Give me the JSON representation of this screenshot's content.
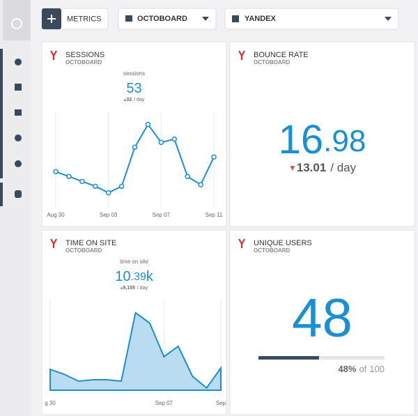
{
  "toolbar": {
    "add_label": "METRICS",
    "dashboard": "OCTOBOARD",
    "source": "YANDEX"
  },
  "widgets": [
    {
      "title": "SESSIONS",
      "subtitle": "OCTOBOARD",
      "metric_label": "sessions",
      "value": 53,
      "delta": 33,
      "delta_unit": "/ day",
      "chart": {
        "type": "line",
        "color": "#1a8fd1",
        "ylim": [
          10,
          70
        ],
        "values": [
          33,
          30,
          27,
          24,
          20,
          24,
          48,
          62,
          51,
          53,
          30,
          25,
          42
        ],
        "x_labels": [
          "Aug 30",
          "Sep 03",
          "Sep 07",
          "Sep 11"
        ],
        "x_label_index": [
          0,
          4,
          8,
          12
        ]
      }
    },
    {
      "title": "BOUNCE RATE",
      "subtitle": "OCTOBOARD",
      "value_whole": "16",
      "value_fraction": ".98",
      "delta": 13.01,
      "delta_unit": "/ day"
    },
    {
      "title": "TIME ON SITE",
      "subtitle": "OCTOBOARD",
      "metric_label": "time on site",
      "value_whole": "10",
      "value_fraction": ".39",
      "value_suffix": "k",
      "delta": "9,155",
      "delta_unit": "/ day",
      "chart": {
        "type": "area",
        "color": "#1a8fd1",
        "fill": "#b9dcf1",
        "ylim": [
          0,
          20
        ],
        "values": [
          4.6,
          3.5,
          2.0,
          2.3,
          2.3,
          2.0,
          17.1,
          14.8,
          7.4,
          9.7,
          3.1,
          0.5,
          4.9
        ],
        "x_labels": [
          "g 30",
          "Sep 07",
          "Sep"
        ],
        "x_label_index": [
          0,
          8,
          12
        ]
      }
    },
    {
      "title": "UNIQUE USERS",
      "subtitle": "OCTOBOARD",
      "value": 48,
      "progress_label": "48%",
      "of_label": "of",
      "max": 100
    }
  ]
}
